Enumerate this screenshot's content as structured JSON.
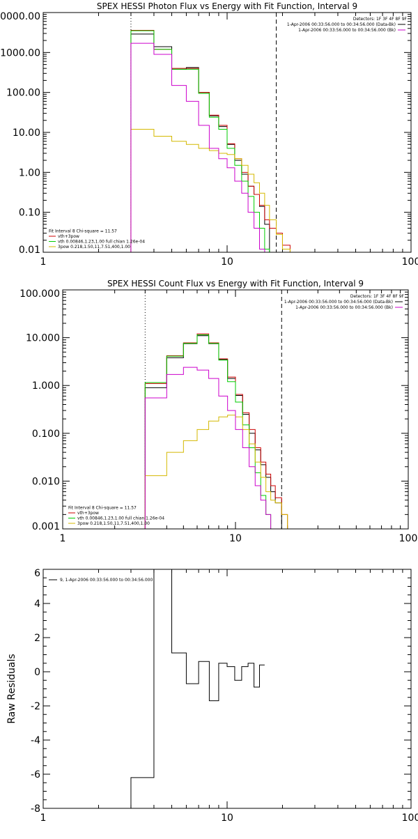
{
  "chart_data": [
    {
      "type": "line",
      "title": "SPEX HESSI Photon Flux vs Energy with Fit Function, Interval 9",
      "xlabel": "",
      "ylabel": "",
      "xscale": "log",
      "yscale": "log",
      "xlim": [
        1,
        100
      ],
      "ylim": [
        0.01,
        10000
      ],
      "xticks": [
        1,
        10,
        100
      ],
      "xtick_labels": [
        "1",
        "10",
        "100"
      ],
      "yticks": [
        0.01,
        0.1,
        1,
        10,
        100,
        1000,
        10000
      ],
      "ytick_labels": [
        "0.01",
        "0.10",
        "1.00",
        "10.00",
        "100.00",
        "1000.00",
        "10000.00"
      ],
      "info_lines": [
        "Detectors: 1F 3F 4F 8F 9F"
      ],
      "legend_top": [
        {
          "label": "1-Apr-2006 00:33:56.000 to 00:34:56.000 (Data-Bk)",
          "color": "#000000"
        },
        {
          "label": "1-Apr-2006 00:33:56.000 to 00:34:56.000 (Bk)",
          "color": "#cc00cc"
        }
      ],
      "legend_bottom": [
        {
          "label": "Fit Interval 8   Chi-square = 11.57",
          "color": null
        },
        {
          "label": "vth+3pow",
          "color": "#cc0000"
        },
        {
          "label": "vth 0.00846,1.23,1.00  full chian 1.26e-04",
          "color": "#00cc00"
        },
        {
          "label": "3pow 0.218,1.50,11,7.51,400,1.00",
          "color": "#d4b800"
        }
      ],
      "vlines": [
        {
          "x": 3,
          "style": "dotted",
          "color": "#000000"
        },
        {
          "x": 18.5,
          "style": "dashed",
          "color": "#000000"
        }
      ],
      "bin_edges": [
        3,
        4,
        5,
        6,
        7,
        8,
        9,
        10,
        11,
        12,
        13,
        14,
        15,
        16,
        17,
        18.5,
        20,
        22
      ],
      "series": [
        {
          "name": "(Data-Bk)",
          "color": "#000000",
          "values": [
            2900,
            1400,
            380,
            420,
            100,
            26,
            14,
            5,
            2,
            0.9,
            0.45,
            0.28,
            0.14,
            0.05,
            null,
            null,
            null
          ]
        },
        {
          "name": "vth+3pow",
          "color": "#cc0000",
          "values": [
            3600,
            1200,
            400,
            400,
            100,
            27,
            15,
            5.2,
            2.2,
            1.0,
            0.45,
            0.28,
            0.15,
            0.065,
            0.04,
            0.03,
            0.015
          ]
        },
        {
          "name": "vth",
          "color": "#00cc00",
          "values": [
            3500,
            1200,
            380,
            380,
            95,
            24,
            12,
            4,
            1.5,
            0.6,
            0.25,
            0.1,
            0.04,
            0.012,
            null,
            null,
            null
          ]
        },
        {
          "name": "3pow",
          "color": "#d4b800",
          "values": [
            12,
            8,
            6,
            5,
            4,
            3.5,
            3,
            2.8,
            2.2,
            1.5,
            0.9,
            0.55,
            0.3,
            0.15,
            0.065,
            0.028,
            0.012
          ]
        },
        {
          "name": "(Bk)",
          "color": "#cc00cc",
          "values": [
            1700,
            900,
            150,
            60,
            15,
            4,
            2.2,
            1.3,
            0.6,
            0.3,
            0.1,
            0.04,
            0.012,
            null,
            null,
            null,
            null
          ]
        }
      ]
    },
    {
      "type": "line",
      "title": "SPEX HESSI Count Flux vs Energy with Fit Function, Interval 9",
      "xlabel": "",
      "ylabel": "",
      "xscale": "log",
      "yscale": "log",
      "xlim": [
        1,
        100
      ],
      "ylim": [
        0.001,
        100
      ],
      "xticks": [
        1,
        10,
        100
      ],
      "xtick_labels": [
        "1",
        "10",
        "100"
      ],
      "yticks": [
        0.001,
        0.01,
        0.1,
        1,
        10,
        100
      ],
      "ytick_labels": [
        "0.001",
        "0.010",
        "0.100",
        "1.000",
        "10.000",
        "100.000"
      ],
      "info_lines": [
        "Detectors: 1F 3F 4F 8F 9F"
      ],
      "legend_top": [
        {
          "label": "1-Apr-2006 00:33:56.000 to 00:34:56.000 (Data-Bk)",
          "color": "#000000"
        },
        {
          "label": "1-Apr-2006 00:33:56.000 to 00:34:56.000 (Bk)",
          "color": "#cc00cc"
        }
      ],
      "legend_bottom": [
        {
          "label": "Fit Interval 8   Chi-square = 11.57",
          "color": null
        },
        {
          "label": "vth+3pow",
          "color": "#cc0000"
        },
        {
          "label": "vth 0.00846,1.23,1.00  full chian 1.26e-04",
          "color": "#00cc00"
        },
        {
          "label": "3pow 0.218,1.50,11,7.51,400,1.00",
          "color": "#d4b800"
        }
      ],
      "vlines": [
        {
          "x": 3,
          "style": "dotted",
          "color": "#000000"
        },
        {
          "x": 18.5,
          "style": "dashed",
          "color": "#000000"
        }
      ],
      "bin_edges": [
        3,
        4,
        5,
        6,
        7,
        8,
        9,
        10,
        11,
        12,
        13,
        14,
        15,
        16,
        17,
        18.5,
        20,
        22
      ],
      "series": [
        {
          "name": "(Data-Bk)",
          "color": "#000000",
          "values": [
            0.9,
            3.8,
            7.5,
            11,
            7.5,
            3.5,
            1.4,
            0.62,
            0.25,
            0.1,
            0.045,
            0.022,
            0.012,
            0.006,
            0.0035,
            null,
            null
          ]
        },
        {
          "name": "vth+3pow",
          "color": "#cc0000",
          "values": [
            1.1,
            4.2,
            7.8,
            12,
            7.8,
            3.6,
            1.5,
            0.65,
            0.27,
            0.12,
            0.05,
            0.025,
            0.014,
            0.008,
            0.0045,
            0.002,
            0.001
          ]
        },
        {
          "name": "vth",
          "color": "#00cc00",
          "values": [
            1.15,
            4.1,
            7.6,
            11.5,
            7.6,
            3.4,
            1.2,
            0.45,
            0.15,
            0.05,
            0.015,
            0.005,
            0.002,
            0.001,
            null,
            null,
            null
          ]
        },
        {
          "name": "3pow",
          "color": "#d4b800",
          "values": [
            0.013,
            0.04,
            0.07,
            0.12,
            0.18,
            0.22,
            0.24,
            0.22,
            0.12,
            0.06,
            0.025,
            0.012,
            0.006,
            0.004,
            0.0035,
            0.002,
            0.001
          ]
        },
        {
          "name": "(Bk)",
          "color": "#cc00cc",
          "values": [
            0.55,
            1.7,
            2.4,
            2.1,
            1.4,
            0.6,
            0.3,
            0.12,
            0.05,
            0.02,
            0.008,
            0.004,
            0.002,
            0.001,
            null,
            null,
            null
          ]
        }
      ]
    },
    {
      "type": "line",
      "title": "",
      "xlabel": "",
      "ylabel": "Raw Residuals",
      "xscale": "log",
      "yscale": "linear",
      "xlim": [
        1,
        100
      ],
      "ylim": [
        -8,
        6
      ],
      "xticks": [
        1,
        10,
        100
      ],
      "xtick_labels": [
        "1",
        "10",
        "100"
      ],
      "yticks": [
        -8,
        -6,
        -4,
        -2,
        0,
        2,
        4,
        6
      ],
      "ytick_labels": [
        "-8",
        "-6",
        "-4",
        "-2",
        "0",
        "2",
        "4",
        "6"
      ],
      "legend_top": [
        {
          "label": "9, 1-Apr-2006 00:33:56.000 to 00:34:56.000",
          "color": "#000000"
        }
      ],
      "bin_edges": [
        3,
        4,
        5,
        6,
        7,
        8,
        9,
        10,
        11,
        12,
        13,
        14,
        15,
        16,
        17,
        18.5
      ],
      "series": [
        {
          "name": "",
          "color": "#000000",
          "values": [
            -6.2,
            6.1,
            1.1,
            -0.7,
            0.6,
            -1.7,
            0.5,
            0.3,
            -0.5,
            0.3,
            0.5,
            -0.9,
            0.4,
            null,
            null
          ]
        }
      ]
    }
  ]
}
